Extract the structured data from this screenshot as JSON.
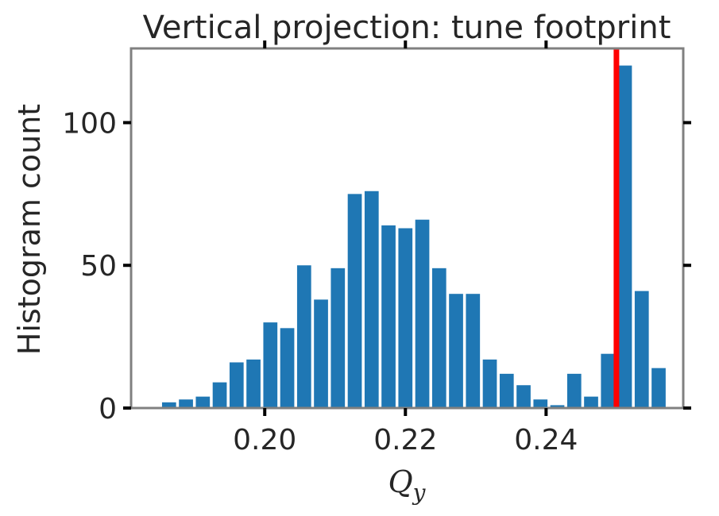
{
  "chart_data": {
    "type": "bar",
    "title": "Vertical projection: tune footprint",
    "xlabel": "Q",
    "xlabel_subscript": "y",
    "ylabel": "Histogram count",
    "xlim": [
      0.181,
      0.2595
    ],
    "ylim": [
      0,
      126
    ],
    "xticks": [
      0.2,
      0.22,
      0.24
    ],
    "xtick_labels": [
      "0.20",
      "0.22",
      "0.24"
    ],
    "yticks": [
      0,
      50,
      100
    ],
    "ytick_labels": [
      "0",
      "50",
      "100"
    ],
    "bin_width": 0.0024,
    "bar_color": "#1f77b4",
    "bins": [
      {
        "center": 0.1864,
        "value": 2
      },
      {
        "center": 0.1888,
        "value": 3
      },
      {
        "center": 0.1912,
        "value": 4
      },
      {
        "center": 0.1936,
        "value": 9
      },
      {
        "center": 0.196,
        "value": 16
      },
      {
        "center": 0.1984,
        "value": 17
      },
      {
        "center": 0.2008,
        "value": 30
      },
      {
        "center": 0.2032,
        "value": 28
      },
      {
        "center": 0.2056,
        "value": 50
      },
      {
        "center": 0.208,
        "value": 38
      },
      {
        "center": 0.2104,
        "value": 49
      },
      {
        "center": 0.2128,
        "value": 75
      },
      {
        "center": 0.2152,
        "value": 76
      },
      {
        "center": 0.2176,
        "value": 64
      },
      {
        "center": 0.22,
        "value": 63
      },
      {
        "center": 0.2224,
        "value": 66
      },
      {
        "center": 0.2248,
        "value": 49
      },
      {
        "center": 0.2272,
        "value": 40
      },
      {
        "center": 0.2296,
        "value": 40
      },
      {
        "center": 0.232,
        "value": 17
      },
      {
        "center": 0.2344,
        "value": 12
      },
      {
        "center": 0.2368,
        "value": 8
      },
      {
        "center": 0.2392,
        "value": 3
      },
      {
        "center": 0.2416,
        "value": 1
      },
      {
        "center": 0.244,
        "value": 12
      },
      {
        "center": 0.2464,
        "value": 4
      },
      {
        "center": 0.2488,
        "value": 19
      },
      {
        "center": 0.2512,
        "value": 120
      },
      {
        "center": 0.2536,
        "value": 41
      },
      {
        "center": 0.256,
        "value": 14
      }
    ],
    "reference_line": {
      "x": 0.25,
      "color": "#ff0000"
    }
  }
}
